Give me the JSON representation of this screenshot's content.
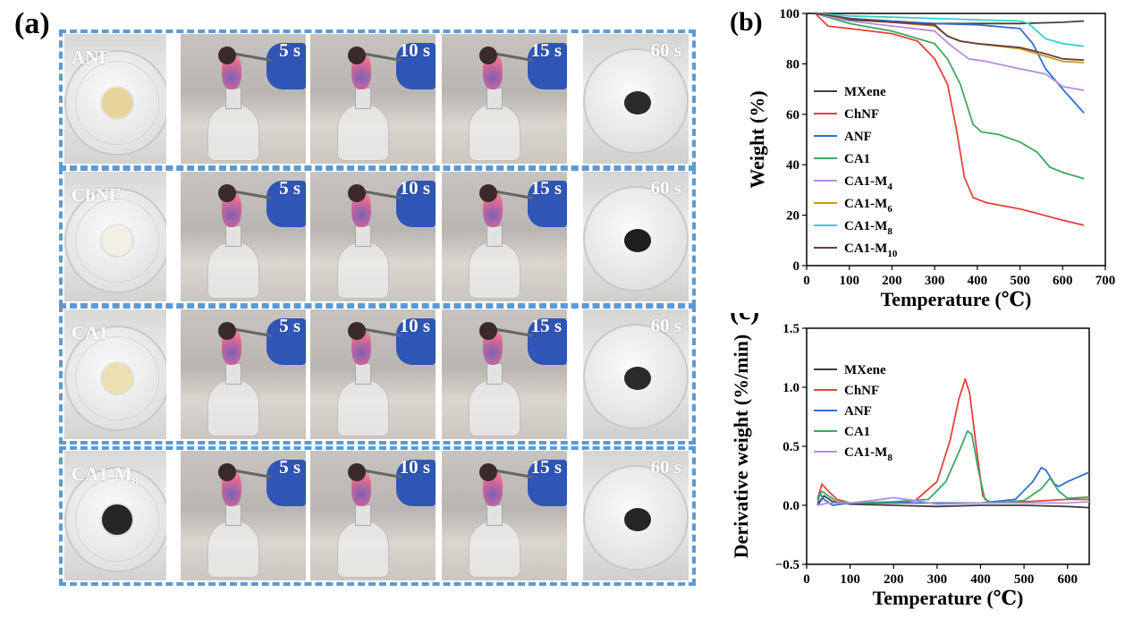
{
  "panel_a": {
    "letter": "(a)",
    "rows": [
      {
        "sample": "ANF",
        "times": [
          "5 s",
          "10 s",
          "15 s"
        ],
        "final_time": "60 s",
        "sample_color": "#e6d49a",
        "residue_color": "#2a2a2a"
      },
      {
        "sample": "ChNF",
        "times": [
          "5 s",
          "10 s",
          "15 s"
        ],
        "final_time": "60 s",
        "sample_color": "#f2efe4",
        "residue_color": "#1e1e1e"
      },
      {
        "sample": "CA1",
        "times": [
          "5 s",
          "10 s",
          "15 s"
        ],
        "final_time": "60 s",
        "sample_color": "#ece0b0",
        "residue_color": "#2b2b2b"
      },
      {
        "sample": "CA1-M",
        "sample_sub": "8",
        "times": [
          "5 s",
          "10 s",
          "15 s"
        ],
        "final_time": "60 s",
        "sample_color": "#262626",
        "residue_color": "#262626"
      }
    ],
    "border_color": "#5b9bd5"
  },
  "chart_data": [
    {
      "panel": "(b)",
      "type": "line",
      "xlabel": "Temperature (℃)",
      "ylabel": "Weight (%)",
      "xlim": [
        0,
        700
      ],
      "ylim": [
        0,
        100
      ],
      "xticks": [
        0,
        100,
        200,
        300,
        400,
        500,
        600,
        700
      ],
      "yticks": [
        0,
        20,
        40,
        60,
        80,
        100
      ],
      "legend_position": "left",
      "series": [
        {
          "name": "MXene",
          "color": "#404040",
          "x": [
            20,
            100,
            200,
            300,
            400,
            500,
            600,
            650
          ],
          "y": [
            100,
            97.5,
            96.5,
            96,
            96,
            96,
            96.5,
            97
          ]
        },
        {
          "name": "ChNF",
          "color": "#e8413c",
          "x": [
            20,
            50,
            100,
            200,
            260,
            300,
            330,
            350,
            370,
            390,
            420,
            500,
            600,
            650
          ],
          "y": [
            100,
            95,
            94,
            92,
            89,
            82,
            72,
            55,
            35,
            27,
            25,
            22.5,
            18,
            16
          ]
        },
        {
          "name": "ANF",
          "color": "#2f6fd1",
          "x": [
            20,
            100,
            200,
            300,
            400,
            500,
            530,
            560,
            600,
            650
          ],
          "y": [
            100,
            98,
            97,
            96,
            95.5,
            94,
            88,
            78,
            70,
            60.5
          ]
        },
        {
          "name": "CA1",
          "color": "#3aa862",
          "x": [
            20,
            100,
            200,
            300,
            330,
            360,
            390,
            410,
            450,
            500,
            540,
            570,
            600,
            650
          ],
          "y": [
            100,
            96,
            93,
            88,
            82,
            72,
            56,
            53,
            52,
            49,
            45,
            39,
            37,
            34.5
          ]
        },
        {
          "name": "CA1-M",
          "name_sub": "4",
          "color": "#b48de8",
          "x": [
            20,
            100,
            200,
            300,
            340,
            380,
            420,
            500,
            560,
            600,
            650
          ],
          "y": [
            100,
            97,
            95,
            93,
            87,
            82,
            81,
            78,
            76,
            71,
            69.5
          ]
        },
        {
          "name": "CA1-M",
          "name_sub": "6",
          "color": "#c79a1d",
          "x": [
            20,
            100,
            200,
            300,
            330,
            360,
            400,
            500,
            560,
            600,
            650
          ],
          "y": [
            100,
            98,
            96.5,
            95,
            91,
            89,
            88,
            86,
            83,
            81,
            80.5
          ]
        },
        {
          "name": "CA1-M",
          "name_sub": "8",
          "color": "#35d3c8",
          "x": [
            20,
            100,
            200,
            300,
            400,
            500,
            520,
            540,
            560,
            600,
            650
          ],
          "y": [
            100,
            99,
            98.5,
            98,
            97.5,
            97,
            96,
            93,
            90,
            88,
            87
          ]
        },
        {
          "name": "CA1-M",
          "name_sub": "10",
          "color": "#6b3c3c",
          "x": [
            20,
            100,
            200,
            300,
            330,
            360,
            400,
            500,
            560,
            600,
            650
          ],
          "y": [
            100,
            98,
            96.5,
            95.5,
            91,
            89,
            88,
            86.5,
            84,
            82,
            81.5
          ]
        }
      ]
    },
    {
      "panel": "(c)",
      "type": "line",
      "xlabel": "Temperature (℃)",
      "ylabel": "Derivative weight (%/min)",
      "xlim": [
        0,
        650
      ],
      "ylim": [
        -0.5,
        1.5
      ],
      "xticks": [
        0,
        100,
        200,
        300,
        400,
        500,
        600
      ],
      "yticks": [
        -0.5,
        0.0,
        0.5,
        1.0,
        1.5
      ],
      "ytick_labels": [
        "−0.5",
        "0.0",
        "0.5",
        "1.0",
        "1.5"
      ],
      "legend_position": "left",
      "series": [
        {
          "name": "MXene",
          "color": "#404040",
          "x": [
            25,
            40,
            60,
            100,
            200,
            300,
            400,
            500,
            600,
            650
          ],
          "y": [
            0.0,
            0.08,
            0.03,
            0.01,
            0.0,
            -0.01,
            0.0,
            0.0,
            -0.01,
            -0.02
          ]
        },
        {
          "name": "ChNF",
          "color": "#e8413c",
          "x": [
            25,
            35,
            50,
            70,
            100,
            200,
            250,
            300,
            330,
            350,
            365,
            375,
            390,
            405,
            420,
            500,
            600,
            650
          ],
          "y": [
            0.05,
            0.18,
            0.12,
            0.05,
            0.02,
            0.02,
            0.04,
            0.2,
            0.55,
            0.9,
            1.07,
            0.95,
            0.5,
            0.08,
            0.02,
            0.03,
            0.05,
            0.05
          ]
        },
        {
          "name": "ANF",
          "color": "#2f6fd1",
          "x": [
            25,
            30,
            40,
            60,
            100,
            200,
            300,
            400,
            480,
            520,
            540,
            550,
            570,
            580,
            600,
            650
          ],
          "y": [
            0.0,
            0.1,
            0.05,
            0.0,
            0.02,
            0.02,
            0.02,
            0.02,
            0.05,
            0.2,
            0.32,
            0.3,
            0.18,
            0.16,
            0.2,
            0.28
          ]
        },
        {
          "name": "CA1",
          "color": "#3aa862",
          "x": [
            25,
            35,
            50,
            70,
            100,
            200,
            280,
            320,
            350,
            370,
            380,
            395,
            410,
            430,
            500,
            540,
            560,
            580,
            600,
            650
          ],
          "y": [
            0.05,
            0.12,
            0.08,
            0.03,
            0.02,
            0.03,
            0.05,
            0.2,
            0.45,
            0.63,
            0.6,
            0.3,
            0.05,
            0.02,
            0.04,
            0.14,
            0.23,
            0.12,
            0.06,
            0.07
          ]
        },
        {
          "name": "CA1-M",
          "name_sub": "8",
          "color": "#b48de8",
          "x": [
            25,
            50,
            100,
            150,
            200,
            250,
            300,
            400,
            500,
            600,
            650
          ],
          "y": [
            0.0,
            0.02,
            0.02,
            0.04,
            0.065,
            0.04,
            0.01,
            0.02,
            0.02,
            0.02,
            0.03
          ]
        }
      ]
    }
  ]
}
